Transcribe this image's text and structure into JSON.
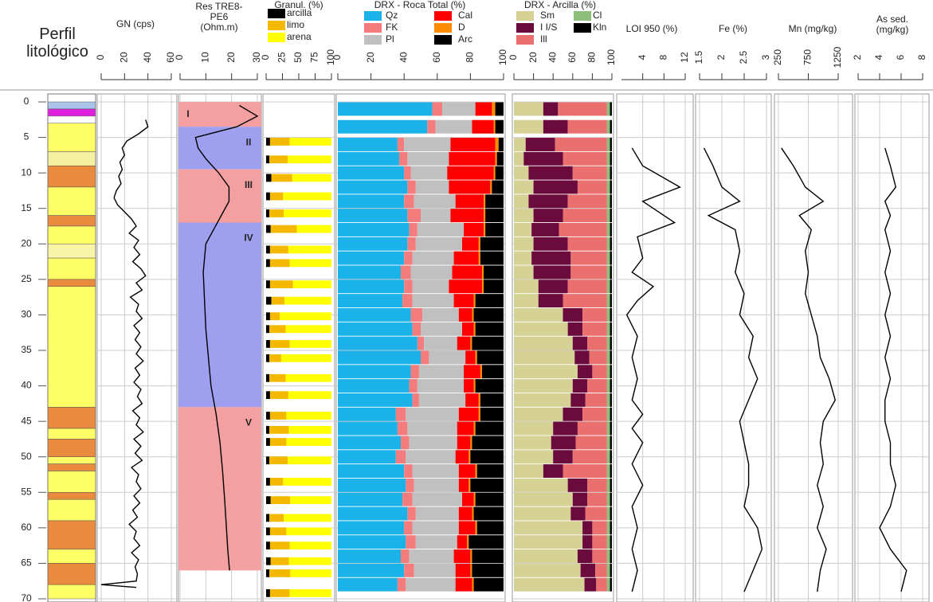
{
  "chart_data": [
    {
      "type": "strata",
      "title": "Perfil litológico",
      "ylim": [
        0,
        70
      ],
      "yticks": [
        0,
        5,
        10,
        15,
        20,
        25,
        30,
        35,
        40,
        45,
        50,
        55,
        60,
        65,
        70
      ],
      "tops": [
        0,
        1,
        2,
        3,
        7,
        9,
        12,
        16,
        17.5,
        20,
        22,
        25,
        26,
        43,
        46,
        47.5,
        50,
        51,
        52,
        55,
        56,
        59,
        63,
        65,
        68
      ],
      "bases": [
        1,
        2,
        3,
        7,
        9,
        12,
        16,
        17.5,
        20,
        22,
        25,
        26,
        43,
        46,
        47.5,
        50,
        51,
        52,
        55,
        56,
        59,
        63,
        65,
        68,
        70
      ],
      "colors": [
        "#a9c4e8",
        "#e020e0",
        "#ffffff",
        "#ffff66",
        "#f5f0a0",
        "#e98a3c",
        "#ffff66",
        "#e98a3c",
        "#ffff66",
        "#f8f5a8",
        "#ffff66",
        "#e98a3c",
        "#ffff66",
        "#e98a3c",
        "#ffff66",
        "#e98a3c",
        "#ffff66",
        "#e98a3c",
        "#ffff66",
        "#e98a3c",
        "#ffff66",
        "#e98a3c",
        "#ffff66",
        "#e98a3c",
        "#ffff66"
      ]
    },
    {
      "type": "line",
      "title": "GN (cps)",
      "xlim": [
        0,
        60
      ],
      "xticks": [
        0,
        20,
        40,
        60
      ],
      "color": "#000000",
      "depth": [
        2.5,
        3.5,
        4.5,
        5.5,
        6.5,
        7.5,
        8.5,
        9.5,
        10.5,
        11.5,
        12.5,
        13.5,
        14.5,
        15.5,
        16.5,
        17.5,
        18.5,
        19.5,
        20.5,
        21.5,
        22.5,
        23.5,
        24.5,
        25.5,
        26.5,
        27.5,
        28.5,
        29.5,
        30.5,
        31.5,
        32.5,
        33.5,
        34.5,
        35.5,
        36.5,
        37.5,
        38.5,
        39.5,
        40.5,
        41.5,
        42.5,
        43.5,
        44.5,
        45.5,
        46.5,
        47.5,
        48.5,
        49.5,
        50.5,
        51.5,
        52.5,
        53.5,
        54.5,
        55.5,
        56.5,
        57.5,
        58.5,
        59.5,
        60.5,
        61.5,
        62.5,
        63.5,
        64.5,
        65.5,
        66.5,
        67.5,
        68,
        68.4
      ],
      "values": [
        38,
        40,
        32,
        22,
        18,
        20,
        16,
        18,
        15,
        17,
        13,
        11,
        14,
        20,
        26,
        30,
        24,
        32,
        28,
        33,
        27,
        34,
        38,
        30,
        35,
        25,
        32,
        30,
        35,
        28,
        33,
        29,
        34,
        30,
        36,
        29,
        33,
        28,
        34,
        31,
        35,
        27,
        33,
        30,
        36,
        28,
        34,
        29,
        35,
        26,
        32,
        30,
        34,
        28,
        33,
        27,
        31,
        24,
        30,
        28,
        33,
        26,
        32,
        29,
        31,
        30,
        0,
        30
      ]
    },
    {
      "type": "line",
      "title": "Res TRE8-PE6 (Ohm.m)",
      "xlim": [
        0,
        30
      ],
      "xticks": [
        0,
        10,
        20,
        30
      ],
      "color": "#000000",
      "depth": [
        0.5,
        2,
        3.5,
        5,
        6.5,
        8,
        10,
        12,
        14,
        16,
        18,
        20,
        24,
        28,
        32,
        36,
        40,
        44,
        48,
        52,
        56,
        60,
        63,
        66
      ],
      "values": [
        23,
        30,
        22,
        6,
        7,
        10,
        15,
        19,
        19,
        16,
        13,
        10,
        9,
        9.5,
        10,
        11,
        12,
        14,
        15.5,
        16.5,
        17.3,
        18,
        18.5,
        19.2
      ],
      "zones": {
        "labels": [
          "I",
          "II",
          "III",
          "IV",
          "V"
        ],
        "tops": [
          0,
          3.5,
          9.5,
          17,
          43
        ],
        "bases": [
          3.5,
          9.5,
          17,
          43,
          66
        ],
        "colors": [
          "#f4a0a0",
          "#9f9ff0",
          "#f4a0a0",
          "#9f9ff0",
          "#f4a0a0"
        ]
      }
    },
    {
      "type": "stacked",
      "title": "Granul. (%)",
      "xlim": [
        0,
        100
      ],
      "xticks": [
        0,
        25,
        50,
        75,
        100
      ],
      "depth": [
        5.6,
        8.1,
        10.7,
        13.3,
        15.7,
        17.9,
        20.8,
        22.7,
        25.7,
        28,
        30.2,
        32,
        34.1,
        36.1,
        38.9,
        41.3,
        44.2,
        46.2,
        47.9,
        50.5,
        53.5,
        56.1,
        58.6,
        60.5,
        62.5,
        64.7,
        66.4,
        69.2
      ],
      "series": [
        {
          "name": "arcilla",
          "color": "#000000",
          "values": [
            6,
            5,
            8,
            6,
            5,
            7,
            6,
            6,
            6,
            8,
            6,
            5,
            6,
            5,
            5,
            6,
            6,
            5,
            6,
            5,
            6,
            7,
            5,
            6,
            6,
            7,
            5,
            6
          ]
        },
        {
          "name": "limo",
          "color": "#f5b800",
          "values": [
            30,
            28,
            32,
            20,
            22,
            40,
            28,
            30,
            35,
            20,
            15,
            25,
            30,
            18,
            25,
            28,
            25,
            30,
            25,
            28,
            20,
            30,
            22,
            25,
            30,
            28,
            32,
            30
          ]
        },
        {
          "name": "arena",
          "color": "#ffff00",
          "values": [
            64,
            67,
            60,
            74,
            73,
            53,
            66,
            64,
            59,
            72,
            79,
            70,
            64,
            77,
            70,
            66,
            69,
            65,
            69,
            67,
            74,
            63,
            73,
            69,
            64,
            65,
            63,
            64
          ]
        }
      ]
    },
    {
      "type": "stacked",
      "title": "DRX - Roca Total (%)",
      "xlim": [
        0,
        100
      ],
      "xticks": [
        0,
        20,
        40,
        60,
        80,
        100
      ],
      "depth": [
        1,
        3.5,
        6,
        8,
        10,
        12,
        14,
        16,
        18,
        20,
        22,
        24,
        26,
        28,
        30,
        32,
        34,
        36,
        38,
        40,
        42,
        44,
        46,
        48,
        50,
        52,
        54,
        56,
        58,
        60,
        62,
        64,
        66,
        68
      ],
      "series": [
        {
          "name": "Qz",
          "color": "#1ab2e8",
          "values": [
            57,
            54,
            36,
            37,
            40,
            42,
            40,
            42,
            43,
            42,
            40,
            38,
            40,
            39,
            44,
            45,
            48,
            50,
            44,
            43,
            45,
            35,
            36,
            38,
            35,
            40,
            41,
            39,
            42,
            40,
            41,
            38,
            40,
            36
          ]
        },
        {
          "name": "FK",
          "color": "#f47c7c",
          "values": [
            6,
            5,
            4,
            5,
            4,
            5,
            6,
            8,
            5,
            5,
            5,
            6,
            5,
            6,
            7,
            5,
            4,
            5,
            5,
            5,
            4,
            6,
            6,
            5,
            6,
            5,
            5,
            6,
            5,
            5,
            6,
            5,
            6,
            5
          ]
        },
        {
          "name": "Pl",
          "color": "#c0c0c0",
          "values": [
            20,
            22,
            28,
            25,
            22,
            20,
            25,
            18,
            28,
            28,
            25,
            25,
            22,
            25,
            22,
            25,
            20,
            22,
            27,
            28,
            28,
            32,
            30,
            29,
            30,
            28,
            27,
            30,
            26,
            28,
            25,
            27,
            25,
            30
          ]
        },
        {
          "name": "Cal",
          "color": "#ff0000",
          "values": [
            10,
            13,
            27,
            28,
            28,
            25,
            17,
            20,
            12,
            10,
            15,
            18,
            20,
            12,
            8,
            7,
            8,
            6,
            10,
            6,
            8,
            12,
            10,
            8,
            8,
            10,
            6,
            7,
            8,
            10,
            6,
            10,
            9,
            10
          ]
        },
        {
          "name": "D",
          "color": "#ff8c00",
          "values": [
            2,
            1,
            2,
            1,
            1,
            1,
            1,
            1,
            1,
            1,
            1,
            1,
            1,
            1,
            1,
            1,
            1,
            1,
            1,
            1,
            1,
            1,
            1,
            1,
            1,
            1,
            1,
            1,
            1,
            1,
            1,
            1,
            1,
            1
          ]
        },
        {
          "name": "Arc",
          "color": "#000000",
          "values": [
            5,
            5,
            3,
            4,
            5,
            7,
            11,
            11,
            11,
            14,
            14,
            12,
            12,
            17,
            18,
            17,
            19,
            16,
            13,
            17,
            14,
            14,
            17,
            19,
            20,
            16,
            20,
            17,
            18,
            16,
            21,
            19,
            19,
            18
          ]
        }
      ]
    },
    {
      "type": "stacked",
      "title": "DRX - Arcilla (%)",
      "xlim": [
        0,
        100
      ],
      "xticks": [
        0,
        20,
        40,
        60,
        80,
        100
      ],
      "depth": [
        1,
        3.5,
        6,
        8,
        10,
        12,
        14,
        16,
        18,
        20,
        22,
        24,
        26,
        28,
        30,
        32,
        34,
        36,
        38,
        40,
        42,
        44,
        46,
        48,
        50,
        52,
        54,
        56,
        58,
        60,
        62,
        64,
        66,
        68
      ],
      "series": [
        {
          "name": "Sm",
          "color": "#d6d194",
          "values": [
            30,
            30,
            12,
            10,
            15,
            20,
            15,
            20,
            18,
            20,
            18,
            20,
            25,
            25,
            50,
            55,
            60,
            62,
            65,
            60,
            58,
            50,
            40,
            38,
            40,
            30,
            55,
            60,
            58,
            70,
            70,
            65,
            68,
            72
          ]
        },
        {
          "name": "I I/S",
          "color": "#6b0a3c",
          "values": [
            15,
            25,
            30,
            40,
            45,
            45,
            40,
            30,
            28,
            35,
            40,
            38,
            30,
            25,
            20,
            15,
            15,
            15,
            15,
            15,
            15,
            20,
            25,
            25,
            20,
            20,
            20,
            15,
            15,
            10,
            10,
            15,
            15,
            12
          ]
        },
        {
          "name": "Ill",
          "color": "#ea7070",
          "values": [
            50,
            40,
            53,
            45,
            35,
            30,
            40,
            45,
            49,
            40,
            37,
            37,
            40,
            45,
            25,
            25,
            20,
            18,
            15,
            20,
            22,
            25,
            30,
            32,
            35,
            45,
            20,
            20,
            22,
            15,
            15,
            15,
            12,
            11
          ]
        },
        {
          "name": "Cl",
          "color": "#8ebf7a",
          "values": [
            3,
            3,
            3,
            3,
            3,
            3,
            3,
            3,
            3,
            3,
            3,
            3,
            3,
            3,
            3,
            3,
            3,
            3,
            3,
            3,
            3,
            3,
            3,
            3,
            3,
            3,
            3,
            3,
            3,
            3,
            3,
            3,
            3,
            3
          ]
        },
        {
          "name": "Kln",
          "color": "#000000",
          "values": [
            2,
            2,
            2,
            2,
            2,
            2,
            2,
            2,
            2,
            2,
            2,
            2,
            2,
            2,
            2,
            2,
            2,
            2,
            2,
            2,
            2,
            2,
            2,
            2,
            2,
            2,
            2,
            2,
            2,
            2,
            2,
            2,
            2,
            2
          ]
        }
      ]
    },
    {
      "type": "line",
      "title": "LOI 950 (%)",
      "xlim": [
        0,
        12
      ],
      "xticks": [
        4,
        8,
        12
      ],
      "color": "#000000",
      "depth": [
        6.5,
        9,
        12,
        14,
        17,
        19,
        22,
        24,
        26,
        28,
        30,
        33,
        36,
        39,
        42,
        44,
        46,
        48,
        51,
        54,
        57,
        60,
        63,
        66,
        69
      ],
      "values": [
        2,
        4,
        11,
        4,
        10,
        3,
        4,
        2,
        6,
        3,
        1,
        3,
        2,
        3,
        2,
        4,
        2,
        4,
        2,
        4,
        2,
        3,
        2,
        3,
        2
      ]
    },
    {
      "type": "line",
      "title": "Fe (%)",
      "xlim": [
        1.5,
        3
      ],
      "xticks": [
        1.5,
        2,
        2.5,
        3
      ],
      "color": "#000000",
      "depth": [
        6.5,
        9,
        12,
        14,
        16,
        18,
        21,
        24,
        27,
        30,
        33,
        36,
        39,
        42,
        45,
        48,
        51,
        54,
        57,
        60,
        63,
        66,
        69
      ],
      "values": [
        1.6,
        1.8,
        2.0,
        2.4,
        1.7,
        2.3,
        2.4,
        2.3,
        2.5,
        2.4,
        2.7,
        2.6,
        2.8,
        2.6,
        2.4,
        2.5,
        2.6,
        2.6,
        2.5,
        2.8,
        2.9,
        2.7,
        2.5
      ]
    },
    {
      "type": "line",
      "title": "Mn (mg/kg)",
      "xlim": [
        250,
        1250
      ],
      "xticks": [
        250,
        750,
        1250
      ],
      "color": "#000000",
      "depth": [
        6.5,
        9,
        12,
        14,
        16,
        18,
        21,
        24,
        27,
        30,
        33,
        36,
        39,
        42,
        45,
        48,
        51,
        54,
        57,
        60,
        63,
        66,
        69
      ],
      "values": [
        300,
        500,
        700,
        1000,
        600,
        800,
        700,
        750,
        700,
        800,
        900,
        950,
        1100,
        1200,
        1000,
        950,
        1000,
        900,
        1000,
        900,
        1050,
        950,
        900
      ]
    },
    {
      "type": "line",
      "title": "As sed. (mg/kg)",
      "xlim": [
        2,
        8
      ],
      "xticks": [
        2,
        4,
        6,
        8
      ],
      "color": "#000000",
      "depth": [
        6.5,
        9,
        12,
        14,
        16,
        18,
        21,
        24,
        27,
        30,
        33,
        36,
        39,
        42,
        45,
        48,
        51,
        54,
        57,
        60,
        63,
        66,
        69
      ],
      "values": [
        4.5,
        5,
        5.5,
        4.5,
        5,
        4.5,
        5,
        4.5,
        5,
        4.5,
        5,
        4.5,
        5,
        4.5,
        4.5,
        5,
        5,
        5.5,
        5,
        4,
        5,
        6.5,
        6
      ]
    }
  ]
}
